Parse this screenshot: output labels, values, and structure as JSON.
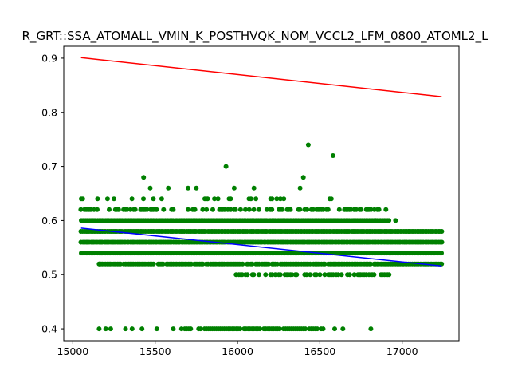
{
  "chart_data": {
    "type": "scatter",
    "title": "R_GRT::SSA_ATOMALL_VMIN_K_POSTHVQK_NOM_VCCL2_LFM_0800_ATOML2_L",
    "xlabel": "",
    "ylabel": "",
    "xlim": [
      14945,
      17345
    ],
    "ylim": [
      0.378,
      0.922
    ],
    "x_ticks": [
      15000,
      15500,
      16000,
      16500,
      17000
    ],
    "x_tick_labels": [
      "15000",
      "15500",
      "16000",
      "16500",
      "17000"
    ],
    "y_ticks": [
      0.4,
      0.5,
      0.6,
      0.7,
      0.8,
      0.9
    ],
    "y_tick_labels": [
      "0.4",
      "0.5",
      "0.6",
      "0.7",
      "0.8",
      "0.9"
    ],
    "grid": false,
    "legend": "none",
    "colors": {
      "points": "#008000",
      "upper_line": "#ff0000",
      "fit_line": "#0000ff"
    },
    "lines": [
      {
        "color": "#ff0000",
        "x": [
          15050,
          17240
        ],
        "y": [
          0.901,
          0.829
        ]
      },
      {
        "color": "#0000ff",
        "x": [
          15050,
          17240
        ],
        "y": [
          0.586,
          0.516
        ]
      }
    ],
    "band_series": [
      {
        "y": 0.64,
        "x_min": 15050,
        "x_max": 16620,
        "density": 0.18
      },
      {
        "y": 0.62,
        "x_min": 15050,
        "x_max": 16900,
        "density": 0.55
      },
      {
        "y": 0.6,
        "x_min": 15050,
        "x_max": 16920,
        "density": 1.0
      },
      {
        "y": 0.58,
        "x_min": 15050,
        "x_max": 17240,
        "density": 1.0
      },
      {
        "y": 0.56,
        "x_min": 15050,
        "x_max": 17240,
        "density": 1.0
      },
      {
        "y": 0.54,
        "x_min": 15050,
        "x_max": 17240,
        "density": 1.0
      },
      {
        "y": 0.52,
        "x_min": 15160,
        "x_max": 17240,
        "density": 0.9
      },
      {
        "y": 0.5,
        "x_min": 15990,
        "x_max": 16920,
        "density": 0.6
      }
    ],
    "scatter_points": [
      {
        "x": 16430,
        "y": 0.74
      },
      {
        "x": 16580,
        "y": 0.72
      },
      {
        "x": 15930,
        "y": 0.7
      },
      {
        "x": 16400,
        "y": 0.68
      },
      {
        "x": 15430,
        "y": 0.68
      },
      {
        "x": 16380,
        "y": 0.66
      },
      {
        "x": 15470,
        "y": 0.66
      },
      {
        "x": 15580,
        "y": 0.66
      },
      {
        "x": 15700,
        "y": 0.66
      },
      {
        "x": 15750,
        "y": 0.66
      },
      {
        "x": 15980,
        "y": 0.66
      },
      {
        "x": 16100,
        "y": 0.66
      },
      {
        "x": 16210,
        "y": 0.64
      },
      {
        "x": 16560,
        "y": 0.64
      },
      {
        "x": 15150,
        "y": 0.64
      },
      {
        "x": 15060,
        "y": 0.64
      },
      {
        "x": 16960,
        "y": 0.6
      },
      {
        "x": 17040,
        "y": 0.58
      },
      {
        "x": 16840,
        "y": 0.6
      },
      {
        "x": 15160,
        "y": 0.52
      },
      {
        "x": 16010,
        "y": 0.52
      },
      {
        "x": 15160,
        "y": 0.4
      },
      {
        "x": 15200,
        "y": 0.4
      },
      {
        "x": 15230,
        "y": 0.4
      },
      {
        "x": 15320,
        "y": 0.4
      },
      {
        "x": 15360,
        "y": 0.4
      },
      {
        "x": 15420,
        "y": 0.4
      },
      {
        "x": 15510,
        "y": 0.4
      },
      {
        "x": 15610,
        "y": 0.4
      },
      {
        "x": 15660,
        "y": 0.4
      },
      {
        "x": 16590,
        "y": 0.4
      },
      {
        "x": 16640,
        "y": 0.4
      },
      {
        "x": 16810,
        "y": 0.4
      }
    ],
    "row_040": {
      "y": 0.4,
      "x_min": 15680,
      "x_max": 16540
    }
  }
}
